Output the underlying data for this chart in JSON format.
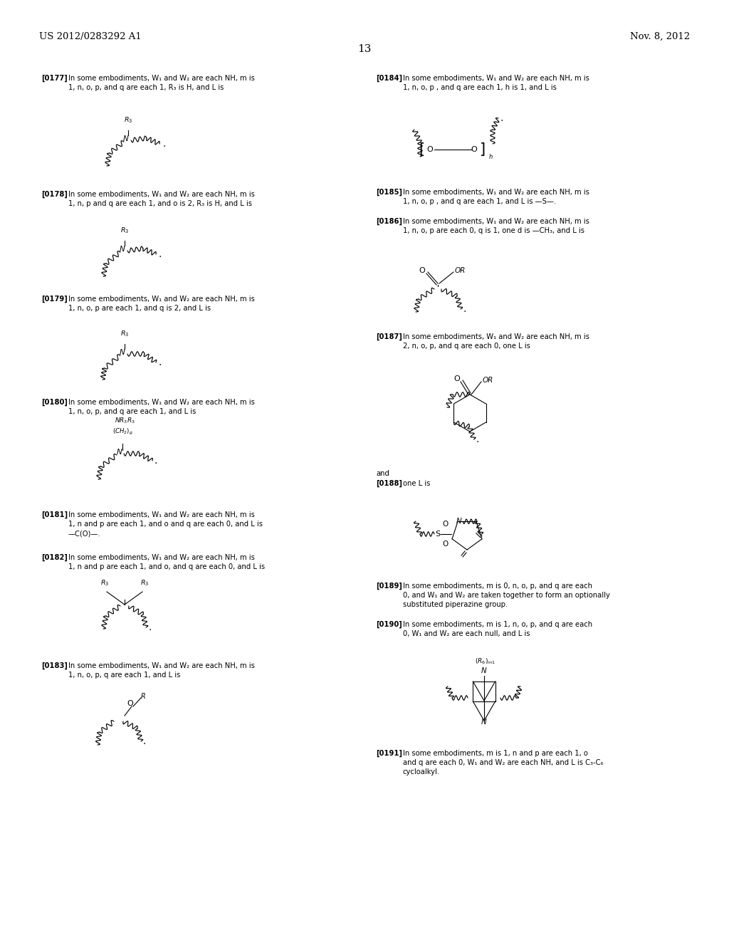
{
  "header_left": "US 2012/0283292 A1",
  "header_right": "Nov. 8, 2012",
  "page_number": "13",
  "background_color": "#ffffff",
  "text_color": "#000000",
  "font_size_header": 9.5,
  "font_size_body": 7.2,
  "font_size_page": 11
}
